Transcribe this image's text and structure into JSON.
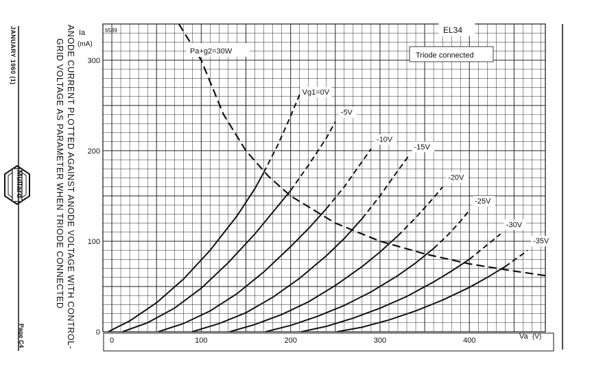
{
  "side": {
    "date": "JANUARY 1960 (1)",
    "page": "Page C4",
    "brand": "Mullard"
  },
  "caption": {
    "line1": "ANODE CURRENT PLOTTED AGAINST ANODE VOLTAGE WITH CONTROL-",
    "line2": "GRID VOLTAGE AS PARAMETER WHEN TRIODE CONNECTED"
  },
  "chart_data": {
    "type": "line",
    "ref": "6589",
    "tube": "EL34",
    "subtitle": "Triode connected",
    "ylabel": "Ia",
    "yunit": "(mA)",
    "xlabel": "Va",
    "xunit": "(V)",
    "xlim": [
      -10,
      485
    ],
    "ylim": [
      0,
      340
    ],
    "grid": true,
    "xticks": [
      0,
      100,
      200,
      300,
      400
    ],
    "yticks": [
      0,
      100,
      200,
      300
    ],
    "xtick_labels": [
      "0",
      "100",
      "200",
      "300",
      "400"
    ],
    "ytick_labels": [
      "0",
      "100",
      "200",
      "300"
    ],
    "dissipation_label": "Pa+g2=30W",
    "dissipation_curve": [
      [
        75,
        340
      ],
      [
        100,
        300
      ],
      [
        125,
        240
      ],
      [
        150,
        200
      ],
      [
        175,
        172
      ],
      [
        200,
        150
      ],
      [
        250,
        120
      ],
      [
        300,
        100
      ],
      [
        350,
        86
      ],
      [
        400,
        75
      ],
      [
        450,
        67
      ],
      [
        485,
        62
      ]
    ],
    "vg_label": "Vg1=0V",
    "series": [
      {
        "name": "0V",
        "points": [
          [
            -4,
            0
          ],
          [
            20,
            12
          ],
          [
            50,
            32
          ],
          [
            80,
            58
          ],
          [
            110,
            90
          ],
          [
            140,
            128
          ],
          [
            160,
            158
          ],
          [
            170,
            176
          ],
          [
            185,
            205
          ],
          [
            200,
            238
          ],
          [
            210,
            262
          ]
        ],
        "solid_until": 170
      },
      {
        "name": "-5V",
        "points": [
          [
            12,
            0
          ],
          [
            40,
            10
          ],
          [
            70,
            26
          ],
          [
            100,
            48
          ],
          [
            130,
            76
          ],
          [
            160,
            108
          ],
          [
            180,
            132
          ],
          [
            200,
            156
          ],
          [
            220,
            184
          ],
          [
            240,
            214
          ],
          [
            250,
            232
          ]
        ],
        "solid_until": 200
      },
      {
        "name": "-10V",
        "points": [
          [
            52,
            0
          ],
          [
            80,
            9
          ],
          [
            110,
            23
          ],
          [
            140,
            42
          ],
          [
            170,
            66
          ],
          [
            200,
            94
          ],
          [
            220,
            114
          ],
          [
            240,
            136
          ],
          [
            260,
            160
          ],
          [
            280,
            188
          ],
          [
            290,
            202
          ]
        ],
        "solid_until": 240
      },
      {
        "name": "-15V",
        "points": [
          [
            90,
            0
          ],
          [
            120,
            9
          ],
          [
            150,
            21
          ],
          [
            180,
            38
          ],
          [
            210,
            59
          ],
          [
            240,
            84
          ],
          [
            260,
            103
          ],
          [
            280,
            125
          ],
          [
            300,
            150
          ],
          [
            320,
            178
          ],
          [
            332,
            194
          ]
        ],
        "solid_until": 280
      },
      {
        "name": "-20V",
        "points": [
          [
            132,
            0
          ],
          [
            160,
            8
          ],
          [
            190,
            19
          ],
          [
            220,
            33
          ],
          [
            250,
            51
          ],
          [
            280,
            72
          ],
          [
            300,
            88
          ],
          [
            320,
            106
          ],
          [
            340,
            126
          ],
          [
            360,
            148
          ],
          [
            370,
            160
          ]
        ],
        "solid_until": 320
      },
      {
        "name": "-25V",
        "points": [
          [
            172,
            0
          ],
          [
            200,
            7
          ],
          [
            230,
            17
          ],
          [
            260,
            29
          ],
          [
            290,
            44
          ],
          [
            320,
            62
          ],
          [
            340,
            76
          ],
          [
            360,
            92
          ],
          [
            375,
            106
          ],
          [
            390,
            122
          ],
          [
            400,
            134
          ]
        ],
        "solid_until": 360
      },
      {
        "name": "-30V",
        "points": [
          [
            212,
            0
          ],
          [
            240,
            6
          ],
          [
            270,
            15
          ],
          [
            300,
            26
          ],
          [
            330,
            39
          ],
          [
            360,
            55
          ],
          [
            380,
            67
          ],
          [
            400,
            80
          ],
          [
            420,
            96
          ],
          [
            435,
            108
          ]
        ],
        "solid_until": 400
      },
      {
        "name": "-35V",
        "points": [
          [
            252,
            0
          ],
          [
            280,
            5
          ],
          [
            310,
            13
          ],
          [
            340,
            23
          ],
          [
            370,
            35
          ],
          [
            400,
            49
          ],
          [
            420,
            60
          ],
          [
            440,
            72
          ],
          [
            460,
            86
          ],
          [
            465,
            90
          ]
        ],
        "solid_until": 440
      }
    ],
    "series_labels": [
      "Vg1=0V",
      "-5V",
      "-10V",
      "-15V",
      "-20V",
      "-25V",
      "-30V",
      "-35V"
    ]
  }
}
